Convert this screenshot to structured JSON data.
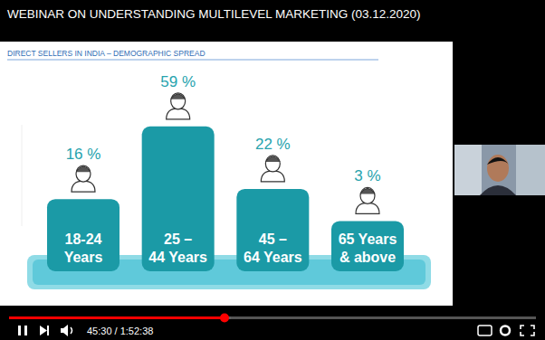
{
  "video": {
    "title": "WEBINAR ON UNDERSTANDING MULTILEVEL MARKETING (03.12.2020)",
    "time": "45:30 / 1:52:38"
  },
  "chart_data": {
    "type": "bar",
    "title": "DIRECT SELLERS IN INDIA – DEMOGRAPHIC SPREAD",
    "categories": [
      "18-24 Years",
      "25 – 44 Years",
      "45 – 64 Years",
      "65 Years & above"
    ],
    "values": [
      16,
      59,
      22,
      3
    ],
    "value_labels": [
      "16 %",
      "59 %",
      "22 %",
      "3 %"
    ],
    "color": "#1b9aa6",
    "ylim": [
      0,
      60
    ],
    "grid": false,
    "tick_labels": false,
    "data_labels": true
  }
}
